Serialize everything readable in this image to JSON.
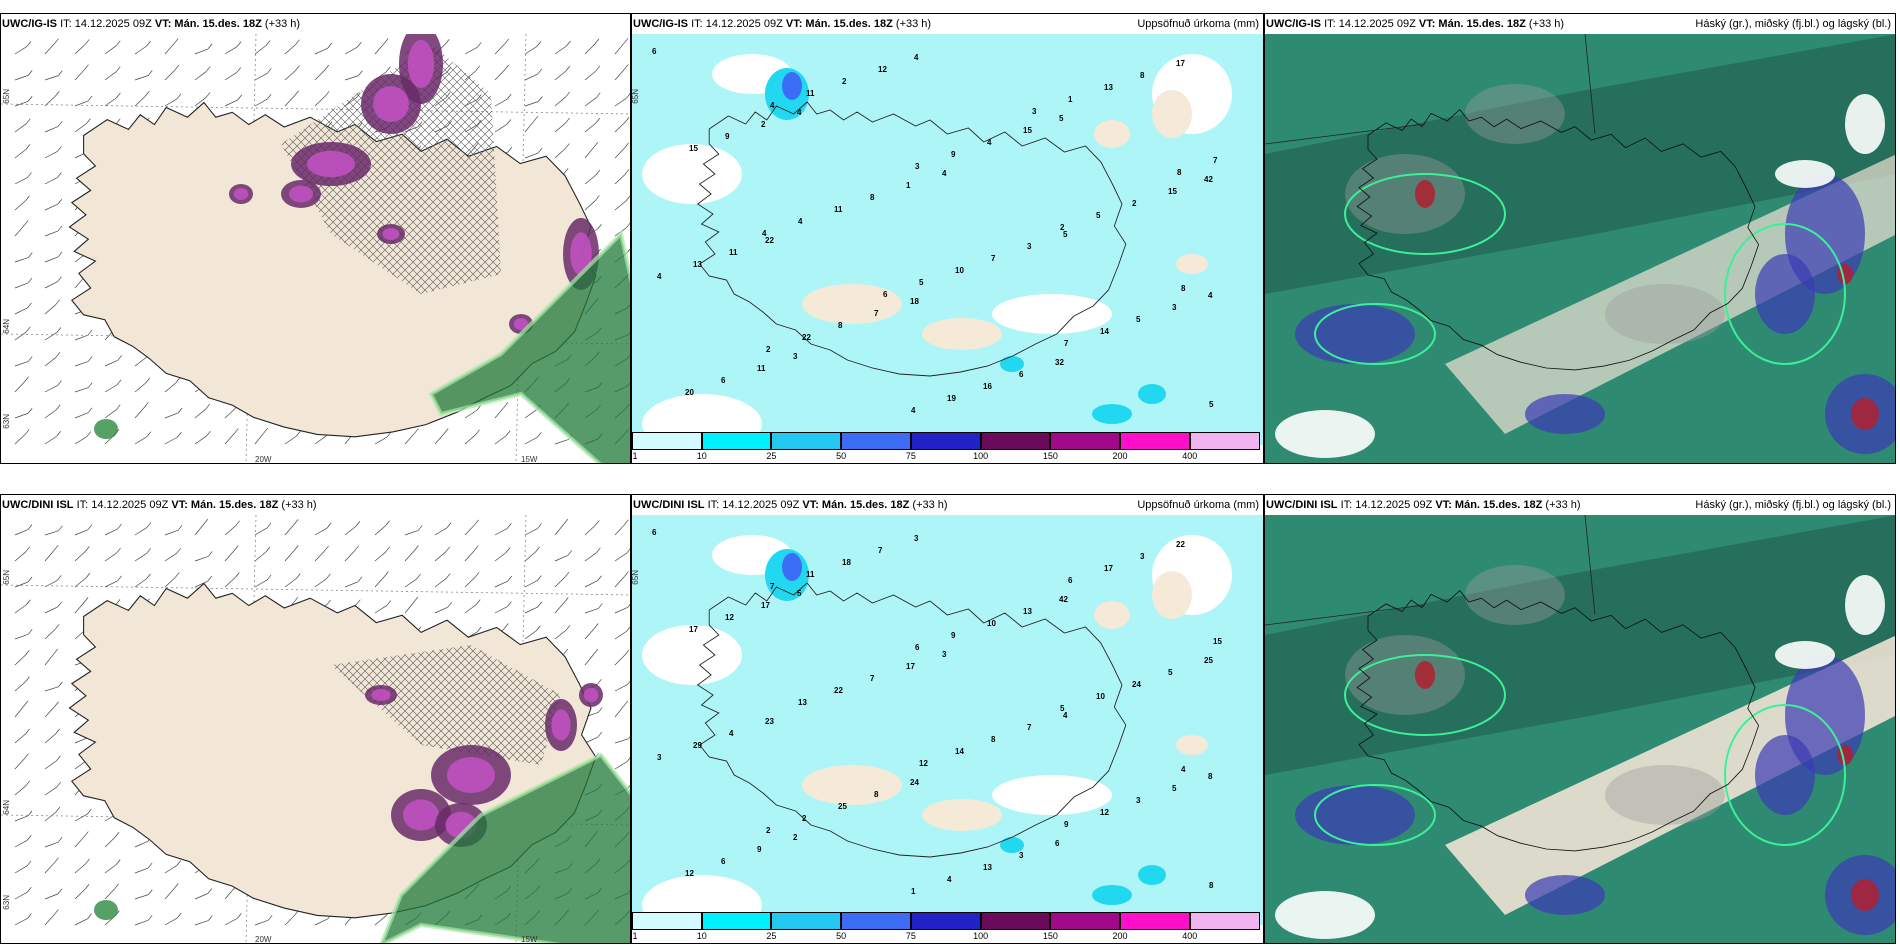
{
  "panels": [
    {
      "model": "UWC/IG-IS",
      "it": "IT: 14.12.2025 09Z",
      "vt_label": "VT:",
      "vt": "Mán. 15.des. 18Z",
      "lead": "(+33 h)",
      "right": "",
      "lat_labels": [
        "65N",
        "64N",
        "63N"
      ],
      "lon_labels": [
        "20W",
        "15W"
      ]
    },
    {
      "model": "UWC/IG-IS",
      "it": "IT: 14.12.2025 09Z",
      "vt_label": "VT:",
      "vt": "Mán. 15.des. 18Z",
      "lead": "(+33 h)",
      "right": "Uppsöfnuð úrkoma (mm)",
      "lat_labels": [
        "65N"
      ],
      "lon_labels": []
    },
    {
      "model": "UWC/IG-IS",
      "it": "IT: 14.12.2025 09Z",
      "vt_label": "VT:",
      "vt": "Mán. 15.des. 18Z",
      "lead": "(+33 h)",
      "right": "Háský (gr.), miðský (fj.bl.) og lágský (bl.)",
      "lat_labels": [],
      "lon_labels": []
    },
    {
      "model": "UWC/DINI ISL",
      "it": "IT: 14.12.2025 09Z",
      "vt_label": "VT:",
      "vt": "Mán. 15.des. 18Z",
      "lead": "(+33 h)",
      "right": "",
      "lat_labels": [
        "65N",
        "64N",
        "63N"
      ],
      "lon_labels": [
        "20W",
        "15W"
      ]
    },
    {
      "model": "UWC/DINI ISL",
      "it": "IT: 14.12.2025 09Z",
      "vt_label": "VT:",
      "vt": "Mán. 15.des. 18Z",
      "lead": "(+33 h)",
      "right": "Uppsöfnuð úrkoma (mm)",
      "lat_labels": [
        "65N"
      ],
      "lon_labels": []
    },
    {
      "model": "UWC/DINI ISL",
      "it": "IT: 14.12.2025 09Z",
      "vt_label": "VT:",
      "vt": "Mán. 15.des. 18Z",
      "lead": "(+33 h)",
      "right": "Háský (gr.), miðský (fj.bl.) og lágský (bl.)",
      "lat_labels": [],
      "lon_labels": []
    }
  ],
  "colorbar": {
    "ticks": [
      "1",
      "10",
      "25",
      "50",
      "75",
      "100",
      "150",
      "200",
      "400"
    ],
    "colors": [
      "#d4fbff",
      "#00f0ff",
      "#22c8f0",
      "#3b6ef5",
      "#2222c8",
      "#6b0a5a",
      "#a00a8a",
      "#ff10c8",
      "#f0b4f0"
    ]
  },
  "precip_values": {
    "top": [
      "6",
      "4",
      "4",
      "5",
      "4",
      "3",
      "4",
      "5",
      "42",
      "22",
      "18",
      "32",
      "17",
      "2",
      "1",
      "3",
      "3",
      "11",
      "12",
      "15",
      "15",
      "11",
      "7",
      "6",
      "8",
      "9",
      "8",
      "7",
      "5",
      "6",
      "2",
      "4",
      "2",
      "13",
      "8",
      "16",
      "13",
      "15",
      "11",
      "10",
      "14",
      "20",
      "11",
      "9",
      "5",
      "4",
      "22",
      "19",
      "1",
      "7",
      "4",
      "5",
      "7",
      "5",
      "4",
      "3",
      "2",
      "8",
      "2",
      "4",
      "3",
      "8",
      "4",
      "6"
    ],
    "bottom": [
      "6",
      "5",
      "3",
      "4",
      "8",
      "2",
      "3",
      "42",
      "25",
      "23",
      "24",
      "6",
      "22",
      "17",
      "17",
      "7",
      "5",
      "9",
      "7",
      "13",
      "5",
      "4",
      "8",
      "3",
      "3",
      "12",
      "7",
      "8",
      "3",
      "6",
      "18",
      "10",
      "24",
      "29",
      "25",
      "13",
      "17",
      "17",
      "22",
      "14",
      "12",
      "12",
      "11",
      "9",
      "10",
      "3",
      "2",
      "4",
      "6",
      "15",
      "13",
      "12",
      "9",
      "8",
      "7",
      "6",
      "5",
      "4",
      "2",
      "1"
    ]
  },
  "cloud_legend_colors": {
    "high": "#9a9a9a",
    "mid": "#1e5a4a",
    "low": "#3a3ab4"
  }
}
